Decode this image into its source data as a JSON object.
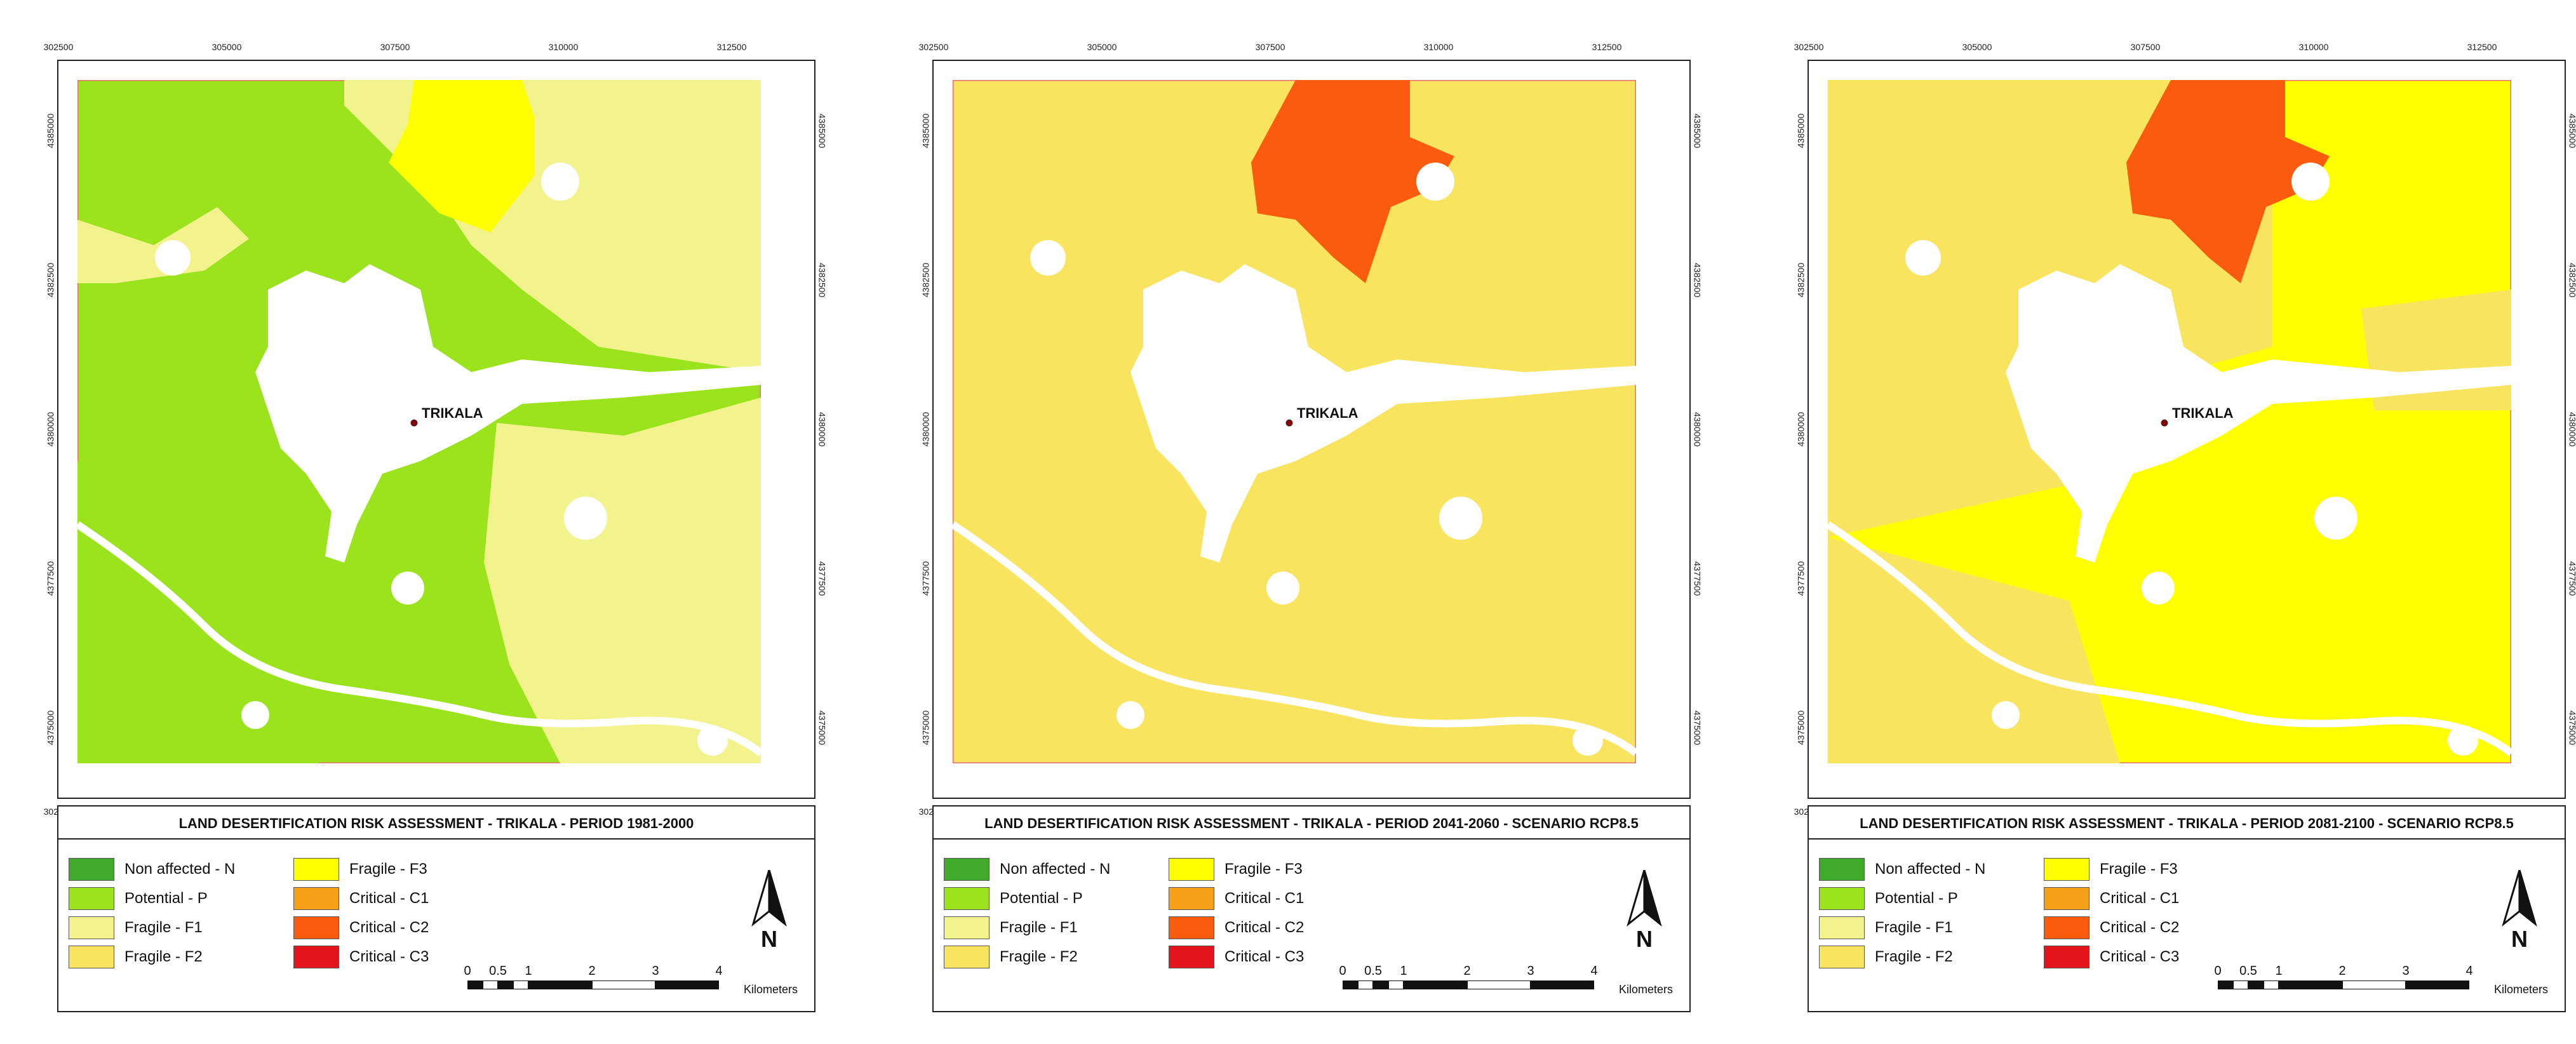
{
  "axis_ticks": {
    "easting": [
      "302500",
      "305000",
      "307500",
      "310000",
      "312500"
    ],
    "northing": [
      "4385000",
      "4382500",
      "4380000",
      "4377500",
      "4375000"
    ]
  },
  "city": {
    "name": "TRIKALA"
  },
  "legend_items": {
    "left": [
      {
        "label": "Non affected - N",
        "color": "#3faa2a"
      },
      {
        "label": "Potential - P",
        "color": "#9be31c"
      },
      {
        "label": "Fragile - F1",
        "color": "#f3f38d"
      },
      {
        "label": "Fragile - F2",
        "color": "#f8e45f"
      }
    ],
    "right": [
      {
        "label": "Fragile - F3",
        "color": "#ffff00"
      },
      {
        "label": "Critical - C1",
        "color": "#f7a11a"
      },
      {
        "label": "Critical - C2",
        "color": "#fa5b0f"
      },
      {
        "label": "Critical - C3",
        "color": "#e3141b"
      }
    ]
  },
  "scale": {
    "labels": [
      "0",
      "0.5",
      "1",
      "2",
      "3",
      "4"
    ],
    "units": "Kilometers"
  },
  "north_label": "N",
  "panels": [
    {
      "title": "LAND DESERTIFICATION RISK ASSESSMENT - TRIKALA - PERIOD 1981-2000"
    },
    {
      "title": "LAND DESERTIFICATION RISK ASSESSMENT - TRIKALA - PERIOD 2041-2060 - SCENARIO RCP8.5"
    },
    {
      "title": "LAND DESERTIFICATION RISK ASSESSMENT - TRIKALA - PERIOD 2081-2100 - SCENARIO RCP8.5"
    }
  ]
}
